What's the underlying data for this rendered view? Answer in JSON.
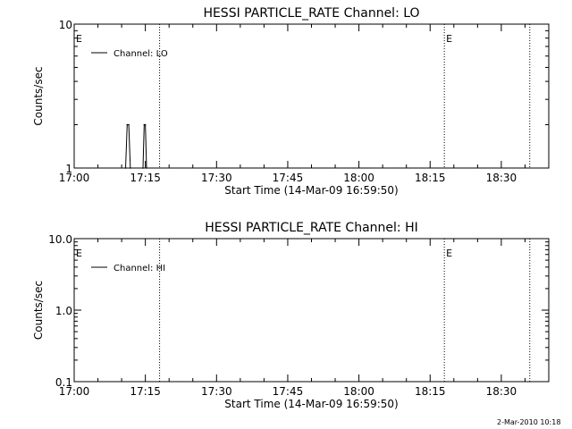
{
  "footer_timestamp": "2-Mar-2010 10:18",
  "chart_data": [
    {
      "type": "line",
      "title": "HESSI PARTICLE_RATE Channel: LO",
      "xlabel": "Start Time (14-Mar-09 16:59:50)",
      "ylabel": "Counts/sec",
      "y_scale": "log",
      "ylim": [
        1,
        10
      ],
      "y_ticks": [
        "1",
        "10"
      ],
      "xlim": [
        "17:00",
        "18:40"
      ],
      "x_ticks": [
        "17:00",
        "17:15",
        "17:30",
        "17:45",
        "18:00",
        "18:15",
        "18:30"
      ],
      "legend": {
        "position": "top-left",
        "entries": [
          "Channel: LO"
        ]
      },
      "series": [
        {
          "name": "Channel: LO",
          "x": [
            "17:10:50",
            "17:11:10",
            "17:11:30",
            "17:11:50",
            "17:14:30",
            "17:14:45",
            "17:15:00",
            "17:15:15"
          ],
          "y": [
            1,
            2,
            2,
            1,
            1,
            2,
            2,
            1
          ]
        }
      ],
      "markers": [
        {
          "time": "17:00",
          "label": "E"
        },
        {
          "time": "17:18",
          "label": ""
        },
        {
          "time": "18:18",
          "label": "E"
        },
        {
          "time": "18:36",
          "label": ""
        }
      ]
    },
    {
      "type": "line",
      "title": "HESSI PARTICLE_RATE Channel: HI",
      "xlabel": "Start Time (14-Mar-09 16:59:50)",
      "ylabel": "Counts/sec",
      "y_scale": "log",
      "ylim": [
        0.1,
        10
      ],
      "y_ticks": [
        "0.1",
        "1.0",
        "10.0"
      ],
      "xlim": [
        "17:00",
        "18:40"
      ],
      "x_ticks": [
        "17:00",
        "17:15",
        "17:30",
        "17:45",
        "18:00",
        "18:15",
        "18:30"
      ],
      "legend": {
        "position": "top-left",
        "entries": [
          "Channel: HI"
        ]
      },
      "series": [
        {
          "name": "Channel: HI",
          "x": [],
          "y": []
        }
      ],
      "markers": [
        {
          "time": "17:00",
          "label": "E"
        },
        {
          "time": "17:18",
          "label": ""
        },
        {
          "time": "18:18",
          "label": "E"
        },
        {
          "time": "18:36",
          "label": ""
        }
      ]
    }
  ]
}
